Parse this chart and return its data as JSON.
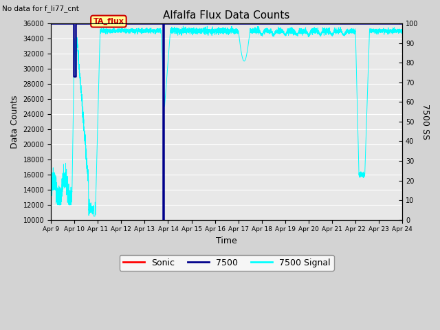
{
  "title": "Alfalfa Flux Data Counts",
  "subtitle": "No data for f_li77_cnt",
  "xlabel": "Time",
  "ylabel": "Data Counts",
  "ylabel_right": "7500 SS",
  "ylim_left": [
    10000,
    36000
  ],
  "ylim_right": [
    0,
    100
  ],
  "background_color": "#d3d3d3",
  "plot_bg_color": "#e8e8e8",
  "x_tick_labels": [
    "Apr 9",
    "Apr 10",
    "Apr 11",
    "Apr 12",
    "Apr 13",
    "Apr 14",
    "Apr 15",
    "Apr 16",
    "Apr 17",
    "Apr 18",
    "Apr 19",
    "Apr 20",
    "Apr 21",
    "Apr 22",
    "Apr 23",
    "Apr 24"
  ],
  "x_tick_values": [
    0,
    1,
    2,
    3,
    4,
    5,
    6,
    7,
    8,
    9,
    10,
    11,
    12,
    13,
    14,
    15
  ],
  "xlim": [
    0,
    15
  ],
  "legend_entries": [
    "Sonic",
    "7500",
    "7500 Signal"
  ],
  "legend_colors": [
    "#ff0000",
    "#00008b",
    "#00ffff"
  ],
  "ta_flux_label": "TA_flux",
  "ta_flux_color": "#ffff99",
  "ta_flux_text_color": "#cc0000",
  "ta_flux_border_color": "#cc0000",
  "line_7500_color": "#00008b",
  "line_7500_signal_color": "#00ffff",
  "line_sonic_color": "#ff0000",
  "yticks_left": [
    10000,
    12000,
    14000,
    16000,
    18000,
    20000,
    22000,
    24000,
    26000,
    28000,
    30000,
    32000,
    34000,
    36000
  ],
  "yticks_right": [
    0,
    10,
    20,
    30,
    40,
    50,
    60,
    70,
    80,
    90,
    100
  ]
}
